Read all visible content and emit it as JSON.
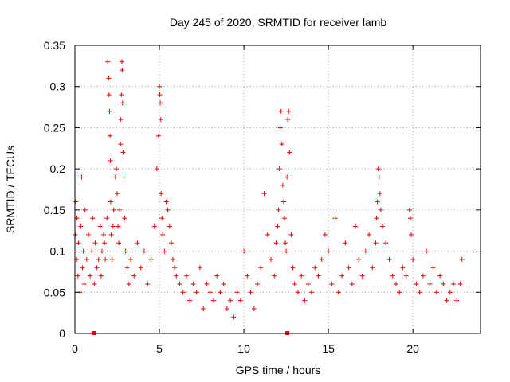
{
  "chart_data": {
    "type": "scatter",
    "title": "Day 245 of 2020, SRMTID for receiver lamb",
    "xlabel": "GPS time / hours",
    "ylabel": "SRMTID / TECUs",
    "xlim": [
      0,
      24
    ],
    "ylim": [
      0,
      0.35
    ],
    "x_ticks": [
      0,
      5,
      10,
      15,
      20
    ],
    "x_tick_labels": [
      "0",
      "5",
      "10",
      "15",
      "20"
    ],
    "y_ticks": [
      0,
      0.05,
      0.1,
      0.15,
      0.2,
      0.25,
      0.3,
      0.35
    ],
    "y_tick_labels": [
      "0",
      "0.05",
      "0.1",
      "0.15",
      "0.2",
      "0.25",
      "0.3",
      "0.35"
    ],
    "grid": true,
    "marker": "+",
    "color": "#ee0000",
    "series": [
      {
        "name": "SRMTID",
        "x": [
          0.02,
          0.05,
          0.1,
          0.12,
          0.18,
          0.22,
          0.3,
          0.35,
          0.4,
          0.45,
          0.5,
          0.55,
          0.6,
          0.7,
          0.8,
          0.9,
          1.0,
          1.05,
          1.15,
          1.2,
          1.3,
          1.4,
          1.5,
          1.55,
          1.6,
          1.7,
          1.75,
          1.8,
          1.9,
          1.95,
          2.0,
          2.02,
          2.05,
          2.08,
          2.1,
          2.12,
          2.15,
          2.2,
          2.25,
          2.3,
          2.4,
          2.45,
          2.5,
          2.55,
          2.6,
          2.65,
          2.7,
          2.72,
          2.75,
          2.78,
          2.8,
          2.82,
          2.85,
          2.9,
          2.95,
          3.0,
          3.1,
          3.2,
          3.3,
          3.5,
          3.7,
          3.9,
          4.1,
          4.3,
          4.5,
          4.7,
          4.85,
          4.95,
          5.0,
          5.02,
          5.05,
          5.08,
          5.1,
          5.15,
          5.2,
          5.3,
          5.4,
          5.5,
          5.6,
          5.7,
          5.8,
          5.9,
          6.0,
          6.2,
          6.4,
          6.6,
          6.8,
          7.0,
          7.2,
          7.4,
          7.6,
          7.8,
          8.0,
          8.2,
          8.4,
          8.6,
          8.8,
          9.0,
          9.2,
          9.4,
          9.6,
          9.8,
          10.0,
          10.2,
          10.4,
          10.6,
          10.8,
          11.0,
          11.2,
          11.4,
          11.6,
          11.8,
          11.9,
          12.0,
          12.05,
          12.1,
          12.15,
          12.2,
          12.25,
          12.3,
          12.35,
          12.4,
          12.45,
          12.5,
          12.55,
          12.6,
          12.65,
          12.7,
          12.8,
          12.9,
          13.0,
          13.2,
          13.4,
          13.6,
          13.8,
          14.0,
          14.2,
          14.4,
          14.6,
          14.8,
          15.0,
          15.2,
          15.4,
          15.6,
          15.8,
          16.0,
          16.2,
          16.4,
          16.6,
          16.8,
          17.0,
          17.2,
          17.4,
          17.6,
          17.8,
          17.85,
          17.9,
          17.95,
          18.0,
          18.05,
          18.1,
          18.2,
          18.4,
          18.6,
          18.8,
          19.0,
          19.2,
          19.4,
          19.6,
          19.8,
          19.85,
          19.9,
          20.0,
          20.2,
          20.4,
          20.6,
          20.8,
          21.0,
          21.2,
          21.4,
          21.6,
          21.8,
          22.0,
          22.2,
          22.4,
          22.6,
          22.8,
          22.9
        ],
        "y": [
          0.12,
          0.16,
          0.09,
          0.14,
          0.07,
          0.11,
          0.05,
          0.13,
          0.19,
          0.08,
          0.1,
          0.06,
          0.15,
          0.09,
          0.12,
          0.07,
          0.1,
          0.14,
          0.06,
          0.11,
          0.08,
          0.09,
          0.13,
          0.07,
          0.1,
          0.12,
          0.11,
          0.09,
          0.14,
          0.33,
          0.31,
          0.29,
          0.27,
          0.24,
          0.21,
          0.16,
          0.12,
          0.09,
          0.13,
          0.15,
          0.19,
          0.2,
          0.17,
          0.13,
          0.11,
          0.15,
          0.23,
          0.26,
          0.29,
          0.33,
          0.32,
          0.28,
          0.22,
          0.19,
          0.14,
          0.1,
          0.08,
          0.06,
          0.09,
          0.07,
          0.11,
          0.08,
          0.1,
          0.06,
          0.09,
          0.13,
          0.2,
          0.24,
          0.3,
          0.29,
          0.28,
          0.26,
          0.17,
          0.14,
          0.12,
          0.1,
          0.16,
          0.15,
          0.13,
          0.11,
          0.09,
          0.08,
          0.07,
          0.06,
          0.05,
          0.07,
          0.04,
          0.06,
          0.05,
          0.08,
          0.03,
          0.06,
          0.05,
          0.04,
          0.07,
          0.05,
          0.06,
          0.03,
          0.04,
          0.02,
          0.05,
          0.04,
          0.1,
          0.07,
          0.05,
          0.03,
          0.06,
          0.08,
          0.17,
          0.12,
          0.09,
          0.07,
          0.11,
          0.13,
          0.15,
          0.2,
          0.25,
          0.27,
          0.23,
          0.18,
          0.16,
          0.14,
          0.11,
          0.1,
          0.19,
          0.26,
          0.27,
          0.22,
          0.12,
          0.08,
          0.06,
          0.05,
          0.07,
          0.04,
          0.06,
          0.05,
          0.08,
          0.07,
          0.09,
          0.12,
          0.1,
          0.06,
          0.14,
          0.05,
          0.07,
          0.11,
          0.08,
          0.06,
          0.13,
          0.09,
          0.07,
          0.1,
          0.12,
          0.08,
          0.11,
          0.14,
          0.16,
          0.2,
          0.19,
          0.17,
          0.15,
          0.13,
          0.11,
          0.09,
          0.07,
          0.06,
          0.05,
          0.08,
          0.07,
          0.15,
          0.14,
          0.12,
          0.09,
          0.06,
          0.05,
          0.07,
          0.1,
          0.06,
          0.08,
          0.05,
          0.07,
          0.06,
          0.04,
          0.05,
          0.06,
          0.04,
          0.06,
          0.09
        ],
        "markers_on_axis": [
          1.1,
          12.55
        ]
      }
    ]
  }
}
